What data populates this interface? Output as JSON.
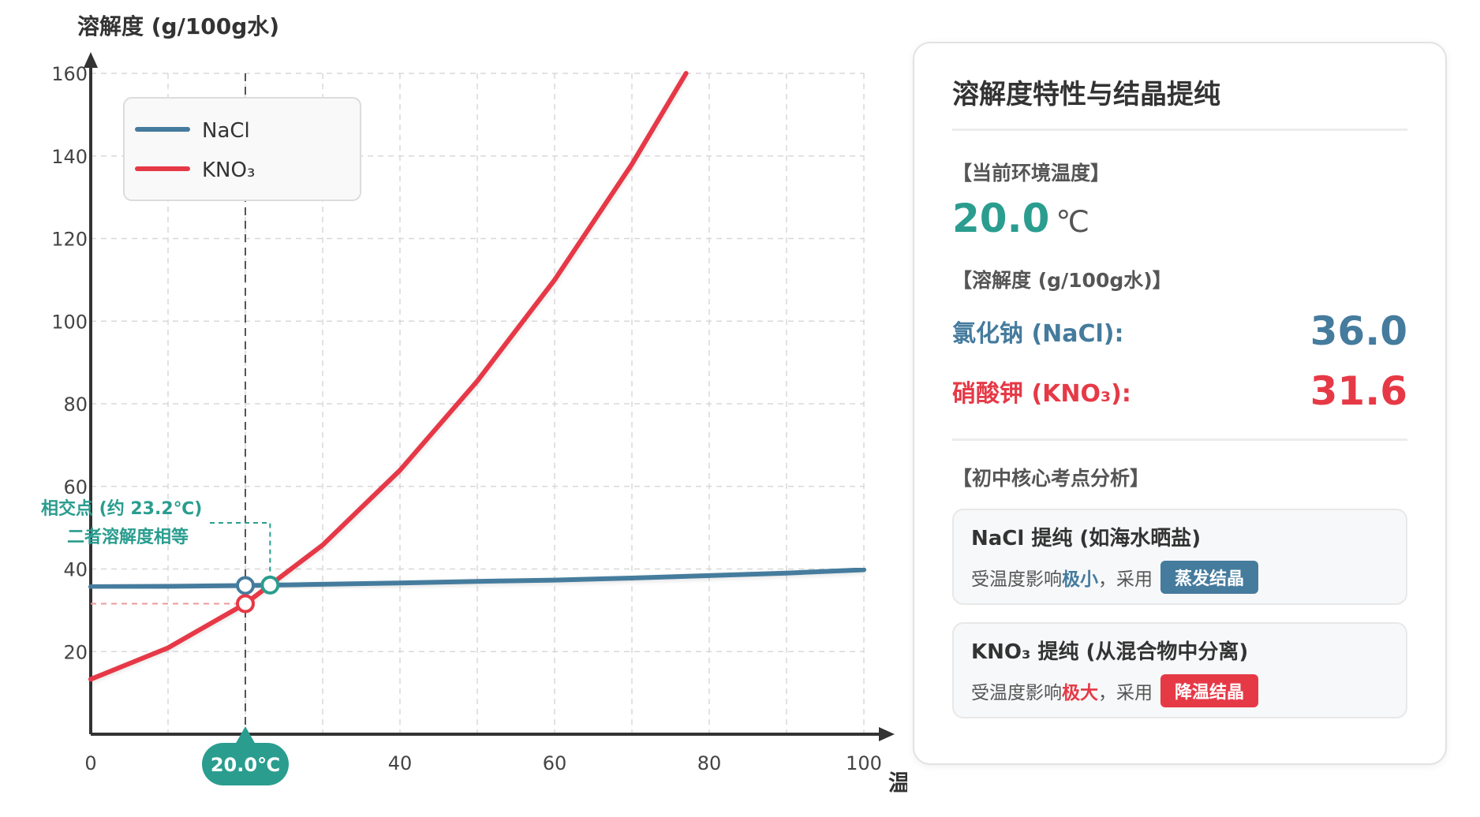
{
  "colors": {
    "nacl": "#457b9d",
    "kno3": "#e63946",
    "accent": "#2a9d8f",
    "axis": "#333333",
    "grid": "#d8d8d8"
  },
  "chart_data": {
    "type": "line",
    "ylabel": "溶解度 (g/100g水)",
    "xlabel": "温度 (℃)",
    "xlim": [
      0,
      100
    ],
    "ylim": [
      0,
      160
    ],
    "x_ticks": [
      0,
      40,
      60,
      80,
      100
    ],
    "y_ticks": [
      20,
      40,
      60,
      80,
      100,
      120,
      140,
      160
    ],
    "grid": true,
    "legend_position": "top-left",
    "series": [
      {
        "name": "NaCl",
        "color": "#457b9d",
        "x": [
          0,
          10,
          20,
          30,
          40,
          50,
          60,
          70,
          80,
          90,
          100
        ],
        "y": [
          35.7,
          35.8,
          36.0,
          36.3,
          36.6,
          37.0,
          37.3,
          37.8,
          38.4,
          39.0,
          39.8
        ]
      },
      {
        "name": "KNO₃",
        "color": "#e63946",
        "x": [
          0,
          10,
          20,
          30,
          40,
          50,
          60,
          70,
          77
        ],
        "y": [
          13.3,
          20.9,
          31.6,
          45.8,
          63.9,
          85.5,
          110,
          138,
          160
        ]
      }
    ],
    "current_temp": 20.0,
    "current_temp_label": "20.0℃",
    "intersection_x": 23.2,
    "intersection_y": 36.1,
    "annotation": {
      "line1": "相交点 (约 23.2℃)",
      "line2": "二者溶解度相等"
    }
  },
  "panel": {
    "title": "溶解度特性与结晶提纯",
    "temp_label": "【当前环境温度】",
    "temp_value": "20.0",
    "temp_unit": "℃",
    "solubility_label": "【溶解度 (g/100g水)】",
    "nacl_name": "氯化钠 (NaCl):",
    "nacl_value": "36.0",
    "kno3_name": "硝酸钾 (KNO₃):",
    "kno3_value": "31.6",
    "analysis_label": "【初中核心考点分析】",
    "cards": [
      {
        "title": "NaCl 提纯 (如海水晒盐)",
        "desc_prefix": "受温度影响",
        "desc_em": "极小",
        "desc_suffix": "，采用",
        "chip": "蒸发结晶",
        "color": "#457b9d"
      },
      {
        "title": "KNO₃ 提纯 (从混合物中分离)",
        "desc_prefix": "受温度影响",
        "desc_em": "极大",
        "desc_suffix": "，采用",
        "chip": "降温结晶",
        "color": "#e63946"
      }
    ]
  }
}
